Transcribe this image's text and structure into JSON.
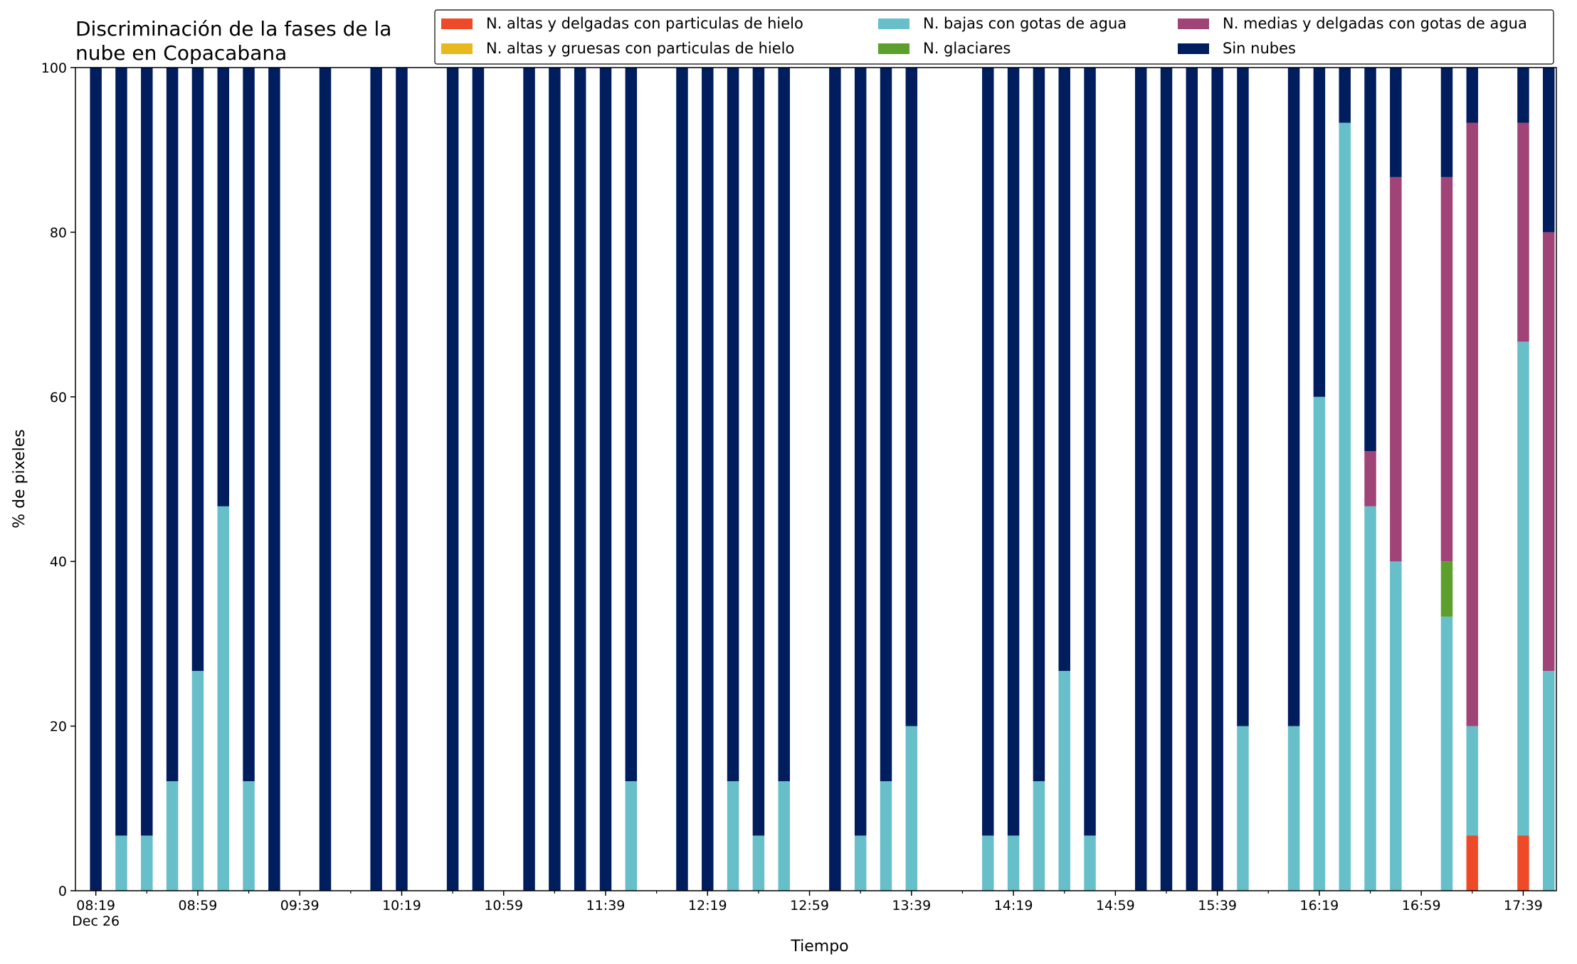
{
  "chart_data": {
    "type": "bar",
    "stacked": true,
    "title_lines": [
      "Discriminación de la fases de la",
      "nube en Copacabana"
    ],
    "xlabel": "Tiempo",
    "ylabel": "% de pixeles",
    "ylim": [
      0,
      100
    ],
    "yticks": [
      0,
      20,
      40,
      60,
      80,
      100
    ],
    "xlim_minutes": [
      491,
      1072
    ],
    "xticks": [
      {
        "t": 499,
        "label": "08:19",
        "sublabel": "Dec 26"
      },
      {
        "t": 539,
        "label": "08:59"
      },
      {
        "t": 579,
        "label": "09:39"
      },
      {
        "t": 619,
        "label": "10:19"
      },
      {
        "t": 659,
        "label": "10:59"
      },
      {
        "t": 699,
        "label": "11:39"
      },
      {
        "t": 739,
        "label": "12:19"
      },
      {
        "t": 779,
        "label": "12:59"
      },
      {
        "t": 819,
        "label": "13:39"
      },
      {
        "t": 859,
        "label": "14:19"
      },
      {
        "t": 899,
        "label": "14:59"
      },
      {
        "t": 939,
        "label": "15:39"
      },
      {
        "t": 979,
        "label": "16:19"
      },
      {
        "t": 1019,
        "label": "16:59"
      },
      {
        "t": 1059,
        "label": "17:39"
      }
    ],
    "bar_width_minutes": 4.6,
    "legend_position": "top-right",
    "grid": false,
    "series": [
      {
        "name": "N. altas y delgadas con particulas de hielo",
        "color": "#ef4a28"
      },
      {
        "name": "N. altas y gruesas con particulas de hielo",
        "color": "#e7b91c"
      },
      {
        "name": "N. bajas con gotas de agua",
        "color": "#67bfca"
      },
      {
        "name": "N. glaciares",
        "color": "#5d9f2c"
      },
      {
        "name": "N. medias y delgadas con gotas de agua",
        "color": "#a04478"
      },
      {
        "name": "Sin nubes",
        "color": "#001d5d"
      }
    ],
    "bars": [
      {
        "t": 499,
        "values": [
          0,
          0,
          0,
          0,
          0,
          100
        ]
      },
      {
        "t": 509,
        "values": [
          0,
          0,
          6.7,
          0,
          0,
          93.3
        ]
      },
      {
        "t": 519,
        "values": [
          0,
          0,
          6.7,
          0,
          0,
          93.3
        ]
      },
      {
        "t": 529,
        "values": [
          0,
          0,
          13.3,
          0,
          0,
          86.7
        ]
      },
      {
        "t": 539,
        "values": [
          0,
          0,
          26.7,
          0,
          0,
          73.3
        ]
      },
      {
        "t": 549,
        "values": [
          0,
          0,
          46.7,
          0,
          0,
          53.3
        ]
      },
      {
        "t": 559,
        "values": [
          0,
          0,
          13.3,
          0,
          0,
          86.7
        ]
      },
      {
        "t": 569,
        "values": [
          0,
          0,
          0,
          0,
          0,
          100
        ]
      },
      {
        "t": 589,
        "values": [
          0,
          0,
          0,
          0,
          0,
          100
        ]
      },
      {
        "t": 609,
        "values": [
          0,
          0,
          0,
          0,
          0,
          100
        ]
      },
      {
        "t": 619,
        "values": [
          0,
          0,
          0,
          0,
          0,
          100
        ]
      },
      {
        "t": 639,
        "values": [
          0,
          0,
          0,
          0,
          0,
          100
        ]
      },
      {
        "t": 649,
        "values": [
          0,
          0,
          0,
          0,
          0,
          100
        ]
      },
      {
        "t": 669,
        "values": [
          0,
          0,
          0,
          0,
          0,
          100
        ]
      },
      {
        "t": 679,
        "values": [
          0,
          0,
          0,
          0,
          0,
          100
        ]
      },
      {
        "t": 689,
        "values": [
          0,
          0,
          0,
          0,
          0,
          100
        ]
      },
      {
        "t": 699,
        "values": [
          0,
          0,
          0,
          0,
          0,
          100
        ]
      },
      {
        "t": 709,
        "values": [
          0,
          0,
          13.3,
          0,
          0,
          86.7
        ]
      },
      {
        "t": 729,
        "values": [
          0,
          0,
          0,
          0,
          0,
          100
        ]
      },
      {
        "t": 739,
        "values": [
          0,
          0,
          0,
          0,
          0,
          100
        ]
      },
      {
        "t": 749,
        "values": [
          0,
          0,
          13.3,
          0,
          0,
          86.7
        ]
      },
      {
        "t": 759,
        "values": [
          0,
          0,
          6.7,
          0,
          0,
          93.3
        ]
      },
      {
        "t": 769,
        "values": [
          0,
          0,
          13.3,
          0,
          0,
          86.7
        ]
      },
      {
        "t": 789,
        "values": [
          0,
          0,
          0,
          0,
          0,
          100
        ]
      },
      {
        "t": 799,
        "values": [
          0,
          0,
          6.7,
          0,
          0,
          93.3
        ]
      },
      {
        "t": 809,
        "values": [
          0,
          0,
          13.3,
          0,
          0,
          86.7
        ]
      },
      {
        "t": 819,
        "values": [
          0,
          0,
          20,
          0,
          0,
          80
        ]
      },
      {
        "t": 849,
        "values": [
          0,
          0,
          6.7,
          0,
          0,
          93.3
        ]
      },
      {
        "t": 859,
        "values": [
          0,
          0,
          6.7,
          0,
          0,
          93.3
        ]
      },
      {
        "t": 869,
        "values": [
          0,
          0,
          13.3,
          0,
          0,
          86.7
        ]
      },
      {
        "t": 879,
        "values": [
          0,
          0,
          26.7,
          0,
          0,
          73.3
        ]
      },
      {
        "t": 889,
        "values": [
          0,
          0,
          6.7,
          0,
          0,
          93.3
        ]
      },
      {
        "t": 909,
        "values": [
          0,
          0,
          0,
          0,
          0,
          100
        ]
      },
      {
        "t": 919,
        "values": [
          0,
          0,
          0,
          0,
          0,
          100
        ]
      },
      {
        "t": 929,
        "values": [
          0,
          0,
          0,
          0,
          0,
          100
        ]
      },
      {
        "t": 939,
        "values": [
          0,
          0,
          0,
          0,
          0,
          100
        ]
      },
      {
        "t": 949,
        "values": [
          0,
          0,
          20,
          0,
          0,
          80
        ]
      },
      {
        "t": 969,
        "values": [
          0,
          0,
          20,
          0,
          0,
          80
        ]
      },
      {
        "t": 979,
        "values": [
          0,
          0,
          60,
          0,
          0,
          40
        ]
      },
      {
        "t": 989,
        "values": [
          0,
          0,
          93.3,
          0,
          0,
          6.7
        ]
      },
      {
        "t": 999,
        "values": [
          0,
          0,
          46.7,
          0,
          6.7,
          46.6
        ]
      },
      {
        "t": 1009,
        "values": [
          0,
          0,
          40,
          0,
          46.7,
          13.3
        ]
      },
      {
        "t": 1029,
        "values": [
          0,
          0,
          33.3,
          6.7,
          46.7,
          13.3
        ]
      },
      {
        "t": 1039,
        "values": [
          6.7,
          0,
          13.3,
          0,
          73.3,
          6.7
        ]
      },
      {
        "t": 1059,
        "values": [
          6.7,
          0,
          60,
          0,
          26.6,
          6.7
        ]
      },
      {
        "t": 1069,
        "values": [
          0,
          0,
          26.7,
          0,
          53.3,
          20
        ]
      }
    ]
  }
}
